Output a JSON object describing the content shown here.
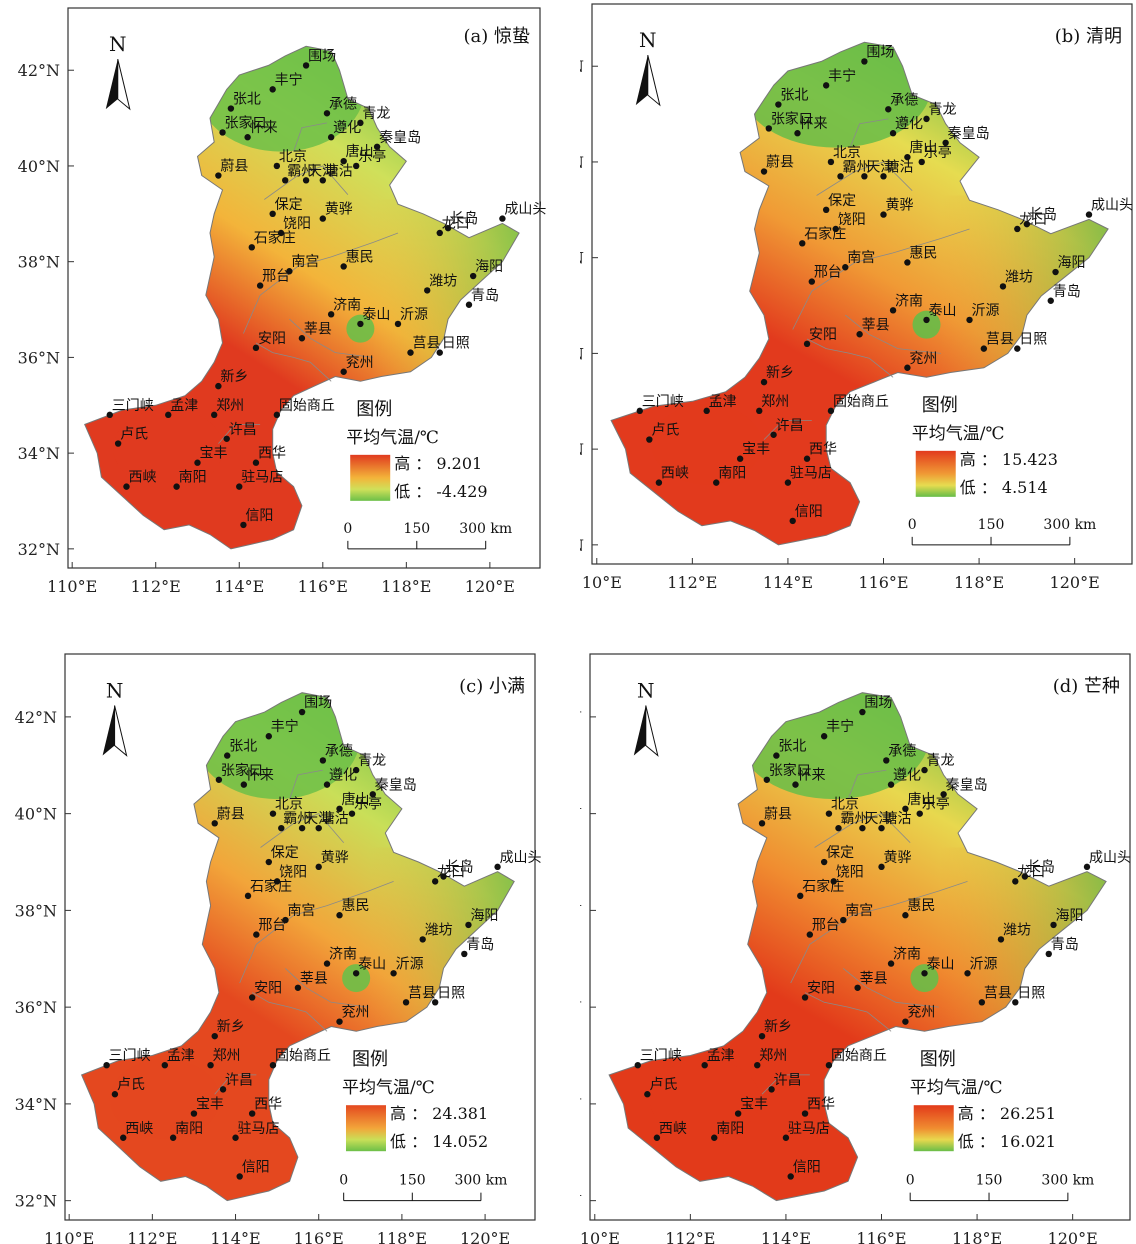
{
  "panels": [
    {
      "id": "a",
      "title": "(a) 惊蛰",
      "legend_heading": "图例",
      "legend_subtitle": "平均气温/℃",
      "high_label": "高 ： 9.201",
      "low_label": "低 ： -4.429",
      "high_value": 9.201,
      "low_value": -4.429,
      "scale_labels": [
        "0",
        "150",
        "300 km"
      ],
      "colors": {
        "south": "#e03a1f",
        "mid": "#f3b43a",
        "east": "#cfe05a",
        "north": "#6cbf48"
      }
    },
    {
      "id": "b",
      "title": "(b) 清明",
      "legend_heading": "图例",
      "legend_subtitle": "平均气温/℃",
      "high_label": "高 ： 15.423",
      "low_label": "低 ： 4.514",
      "high_value": 15.423,
      "low_value": 4.514,
      "scale_labels": [
        "0",
        "150",
        "300 km"
      ],
      "colors": {
        "south": "#e23a1d",
        "mid": "#f09a35",
        "east": "#e6dc50",
        "north": "#66bc48"
      }
    },
    {
      "id": "c",
      "title": "(c) 小满",
      "legend_heading": "图例",
      "legend_subtitle": "平均气温/℃",
      "high_label": "高 ： 24.381",
      "low_label": "低 ： 14.052",
      "high_value": 24.381,
      "low_value": 14.052,
      "scale_labels": [
        "0",
        "150",
        "300 km"
      ],
      "colors": {
        "south": "#e4481f",
        "mid": "#f2a53a",
        "east": "#c9df58",
        "north": "#6cbf48"
      }
    },
    {
      "id": "d",
      "title": "(d) 芒种",
      "legend_heading": "图例",
      "legend_subtitle": "平均气温/℃",
      "high_label": "高 ： 26.251",
      "low_label": "低 ： 16.021",
      "high_value": 26.251,
      "low_value": 16.021,
      "scale_labels": [
        "0",
        "150",
        "300 km"
      ],
      "colors": {
        "south": "#e23a1a",
        "mid": "#f08c30",
        "east": "#e8d84e",
        "north": "#69bd48"
      }
    }
  ],
  "lat_labels": [
    "42°N",
    "40°N",
    "38°N",
    "36°N",
    "34°N",
    "32°N"
  ],
  "lon_labels": [
    "110°E",
    "112°E",
    "114°E",
    "116°E",
    "118°E",
    "120°E"
  ],
  "north_label": "N",
  "cities": [
    {
      "name": "围场",
      "lon": 115.6,
      "lat": 42.1
    },
    {
      "name": "丰宁",
      "lon": 114.8,
      "lat": 41.6
    },
    {
      "name": "张北",
      "lon": 113.8,
      "lat": 41.2
    },
    {
      "name": "承德",
      "lon": 116.1,
      "lat": 41.1
    },
    {
      "name": "青龙",
      "lon": 116.9,
      "lat": 40.9
    },
    {
      "name": "张家口",
      "lon": 113.6,
      "lat": 40.7
    },
    {
      "name": "怀来",
      "lon": 114.2,
      "lat": 40.6
    },
    {
      "name": "遵化",
      "lon": 116.2,
      "lat": 40.6
    },
    {
      "name": "秦皇岛",
      "lon": 117.3,
      "lat": 40.4
    },
    {
      "name": "北京",
      "lon": 114.9,
      "lat": 40.0
    },
    {
      "name": "唐山",
      "lon": 116.5,
      "lat": 40.1
    },
    {
      "name": "蔚县",
      "lon": 113.5,
      "lat": 39.8
    },
    {
      "name": "霸州",
      "lon": 115.1,
      "lat": 39.7
    },
    {
      "name": "天津",
      "lon": 115.6,
      "lat": 39.7
    },
    {
      "name": "塘沽",
      "lon": 116.0,
      "lat": 39.7
    },
    {
      "name": "乐亭",
      "lon": 116.8,
      "lat": 40.0
    },
    {
      "name": "保定",
      "lon": 114.8,
      "lat": 39.0
    },
    {
      "name": "黄骅",
      "lon": 116.0,
      "lat": 38.9
    },
    {
      "name": "饶阳",
      "lon": 115.0,
      "lat": 38.6
    },
    {
      "name": "石家庄",
      "lon": 114.3,
      "lat": 38.3
    },
    {
      "name": "龙口",
      "lon": 118.8,
      "lat": 38.6
    },
    {
      "name": "长岛",
      "lon": 119.0,
      "lat": 38.7
    },
    {
      "name": "成山头",
      "lon": 120.3,
      "lat": 38.9
    },
    {
      "name": "惠民",
      "lon": 116.5,
      "lat": 37.9
    },
    {
      "name": "南宫",
      "lon": 115.2,
      "lat": 37.8
    },
    {
      "name": "邢台",
      "lon": 114.5,
      "lat": 37.5
    },
    {
      "name": "潍坊",
      "lon": 118.5,
      "lat": 37.4
    },
    {
      "name": "海阳",
      "lon": 119.6,
      "lat": 37.7
    },
    {
      "name": "青岛",
      "lon": 119.5,
      "lat": 37.1
    },
    {
      "name": "济南",
      "lon": 116.2,
      "lat": 36.9
    },
    {
      "name": "泰山",
      "lon": 116.9,
      "lat": 36.7
    },
    {
      "name": "沂源",
      "lon": 117.8,
      "lat": 36.7
    },
    {
      "name": "莘县",
      "lon": 115.5,
      "lat": 36.4
    },
    {
      "name": "安阳",
      "lon": 114.4,
      "lat": 36.2
    },
    {
      "name": "莒县",
      "lon": 118.1,
      "lat": 36.1
    },
    {
      "name": "日照",
      "lon": 118.8,
      "lat": 36.1
    },
    {
      "name": "兖州",
      "lon": 116.5,
      "lat": 35.7
    },
    {
      "name": "新乡",
      "lon": 113.5,
      "lat": 35.4
    },
    {
      "name": "三门峡",
      "lon": 110.9,
      "lat": 34.8
    },
    {
      "name": "孟津",
      "lon": 112.3,
      "lat": 34.8
    },
    {
      "name": "郑州",
      "lon": 113.4,
      "lat": 34.8
    },
    {
      "name": "固始商丘",
      "lon": 114.9,
      "lat": 34.8
    },
    {
      "name": "卢氏",
      "lon": 111.1,
      "lat": 34.2
    },
    {
      "name": "许昌",
      "lon": 113.7,
      "lat": 34.3
    },
    {
      "name": "宝丰",
      "lon": 113.0,
      "lat": 33.8
    },
    {
      "name": "西华",
      "lon": 114.4,
      "lat": 33.8
    },
    {
      "name": "西峡",
      "lon": 111.3,
      "lat": 33.3
    },
    {
      "name": "南阳",
      "lon": 112.5,
      "lat": 33.3
    },
    {
      "name": "驻马店",
      "lon": 114.0,
      "lat": 33.3
    },
    {
      "name": "信阳",
      "lon": 114.1,
      "lat": 32.5
    }
  ]
}
